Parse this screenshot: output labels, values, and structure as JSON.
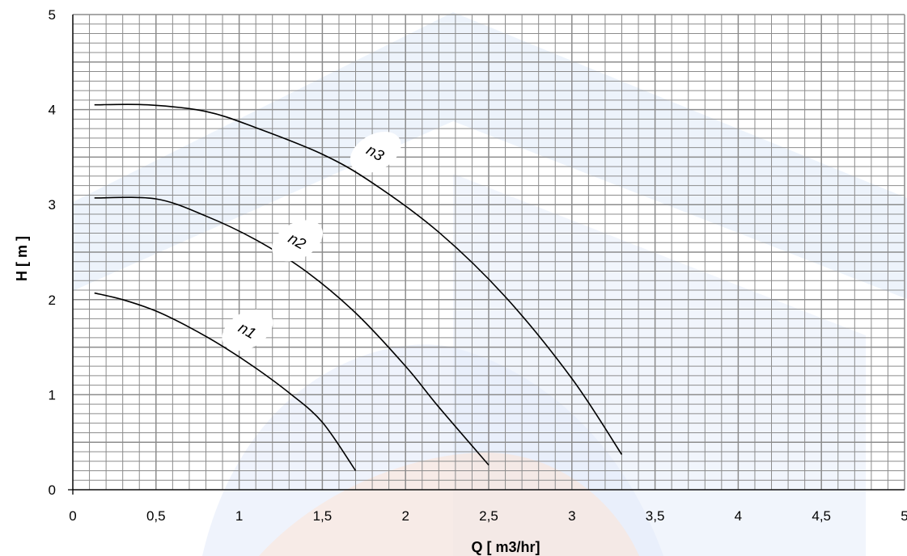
{
  "chart_data": {
    "type": "line",
    "xlabel": "Q [ m3/hr]",
    "ylabel": "H [ m ]",
    "xlim": [
      0,
      5
    ],
    "ylim": [
      0,
      5
    ],
    "x_ticks": [
      "0",
      "0,5",
      "1",
      "1,5",
      "2",
      "2,5",
      "3",
      "3,5",
      "4",
      "4,5",
      "5"
    ],
    "y_ticks": [
      "0",
      "1",
      "2",
      "3",
      "4",
      "5"
    ],
    "grid": true,
    "minor_grid_step": 0.1,
    "line_color": "#000000",
    "grid_color": "#8c8c8c",
    "series": [
      {
        "name": "n1",
        "points": [
          [
            0.13,
            2.07
          ],
          [
            0.3,
            2.0
          ],
          [
            0.5,
            1.88
          ],
          [
            0.7,
            1.71
          ],
          [
            0.9,
            1.51
          ],
          [
            1.1,
            1.28
          ],
          [
            1.3,
            1.02
          ],
          [
            1.5,
            0.71
          ],
          [
            1.7,
            0.2
          ]
        ]
      },
      {
        "name": "n2",
        "points": [
          [
            0.13,
            3.07
          ],
          [
            0.5,
            3.06
          ],
          [
            0.8,
            2.88
          ],
          [
            1.1,
            2.63
          ],
          [
            1.4,
            2.3
          ],
          [
            1.7,
            1.86
          ],
          [
            2.0,
            1.3
          ],
          [
            2.2,
            0.87
          ],
          [
            2.5,
            0.26
          ]
        ]
      },
      {
        "name": "n3",
        "points": [
          [
            0.13,
            4.05
          ],
          [
            0.45,
            4.05
          ],
          [
            0.8,
            3.98
          ],
          [
            1.1,
            3.81
          ],
          [
            1.5,
            3.53
          ],
          [
            1.8,
            3.23
          ],
          [
            2.2,
            2.71
          ],
          [
            2.6,
            2.03
          ],
          [
            3.0,
            1.17
          ],
          [
            3.3,
            0.37
          ]
        ]
      }
    ],
    "annotations": [
      {
        "text": "n1",
        "series": "n1"
      },
      {
        "text": "n2",
        "series": "n2"
      },
      {
        "text": "n3",
        "series": "n3"
      }
    ]
  }
}
